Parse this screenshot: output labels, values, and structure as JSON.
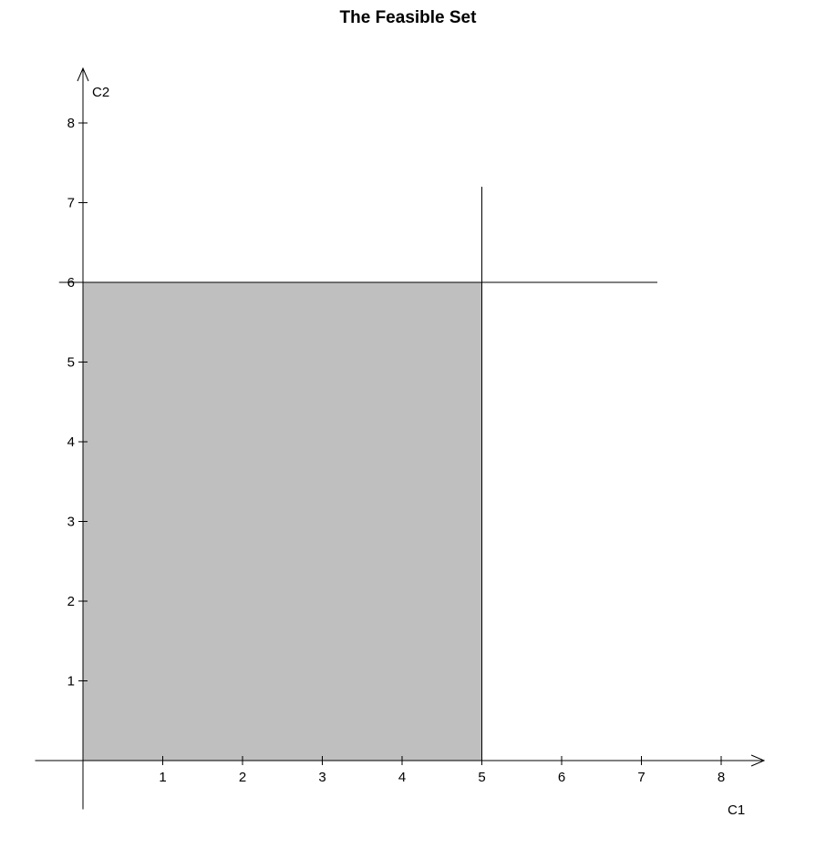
{
  "chart_data": {
    "type": "area",
    "title": "The Feasible Set",
    "xlabel": "C1",
    "ylabel": "C2",
    "xlim": [
      -0.6,
      8.4
    ],
    "ylim": [
      -0.6,
      8.4
    ],
    "x_ticks": [
      1,
      2,
      3,
      4,
      5,
      6,
      7,
      8
    ],
    "y_ticks": [
      1,
      2,
      3,
      4,
      5,
      6,
      7,
      8
    ],
    "feasible_region": {
      "x": [
        0,
        5
      ],
      "y": [
        0,
        6
      ],
      "fill_color": "#bfbfbf"
    },
    "constraints": [
      {
        "type": "vertical",
        "x": 5,
        "y_range": [
          0,
          7.2
        ]
      },
      {
        "type": "horizontal",
        "y": 6,
        "x_range": [
          -0.3,
          7.2
        ]
      }
    ],
    "grid": false,
    "legend": "none"
  }
}
